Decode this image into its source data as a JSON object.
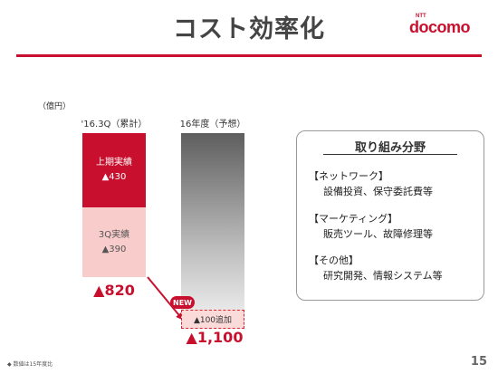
{
  "slide": {
    "title": "コスト効率化",
    "logo": {
      "ntt": "NTT",
      "name": "docomo"
    },
    "unit": "（億円）",
    "page_number": "15",
    "footnote": "◆ 数値は15年度比"
  },
  "columns": [
    {
      "header": "'16.3Q（累計）"
    },
    {
      "header": "16年度（予想）"
    }
  ],
  "segments": {
    "first_half": {
      "label": "上期実績",
      "value": "▲430"
    },
    "q3": {
      "label": "3Q実績",
      "value": "▲390"
    },
    "new_badge": "NEW",
    "additional": "▲100追加"
  },
  "totals": {
    "cumulative": "▲820",
    "forecast": "▲1,100"
  },
  "initiatives": {
    "title": "取り組み分野",
    "items": [
      {
        "category": "【ネットワーク】",
        "detail": "設備投資、保守委託費等"
      },
      {
        "category": "【マーケティング】",
        "detail": "販売ツール、故障修理等"
      },
      {
        "category": "【その他】",
        "detail": "研究開発、情報システム等"
      }
    ]
  },
  "colors": {
    "accent": "#c8102e",
    "pink": "#f9cccc"
  }
}
